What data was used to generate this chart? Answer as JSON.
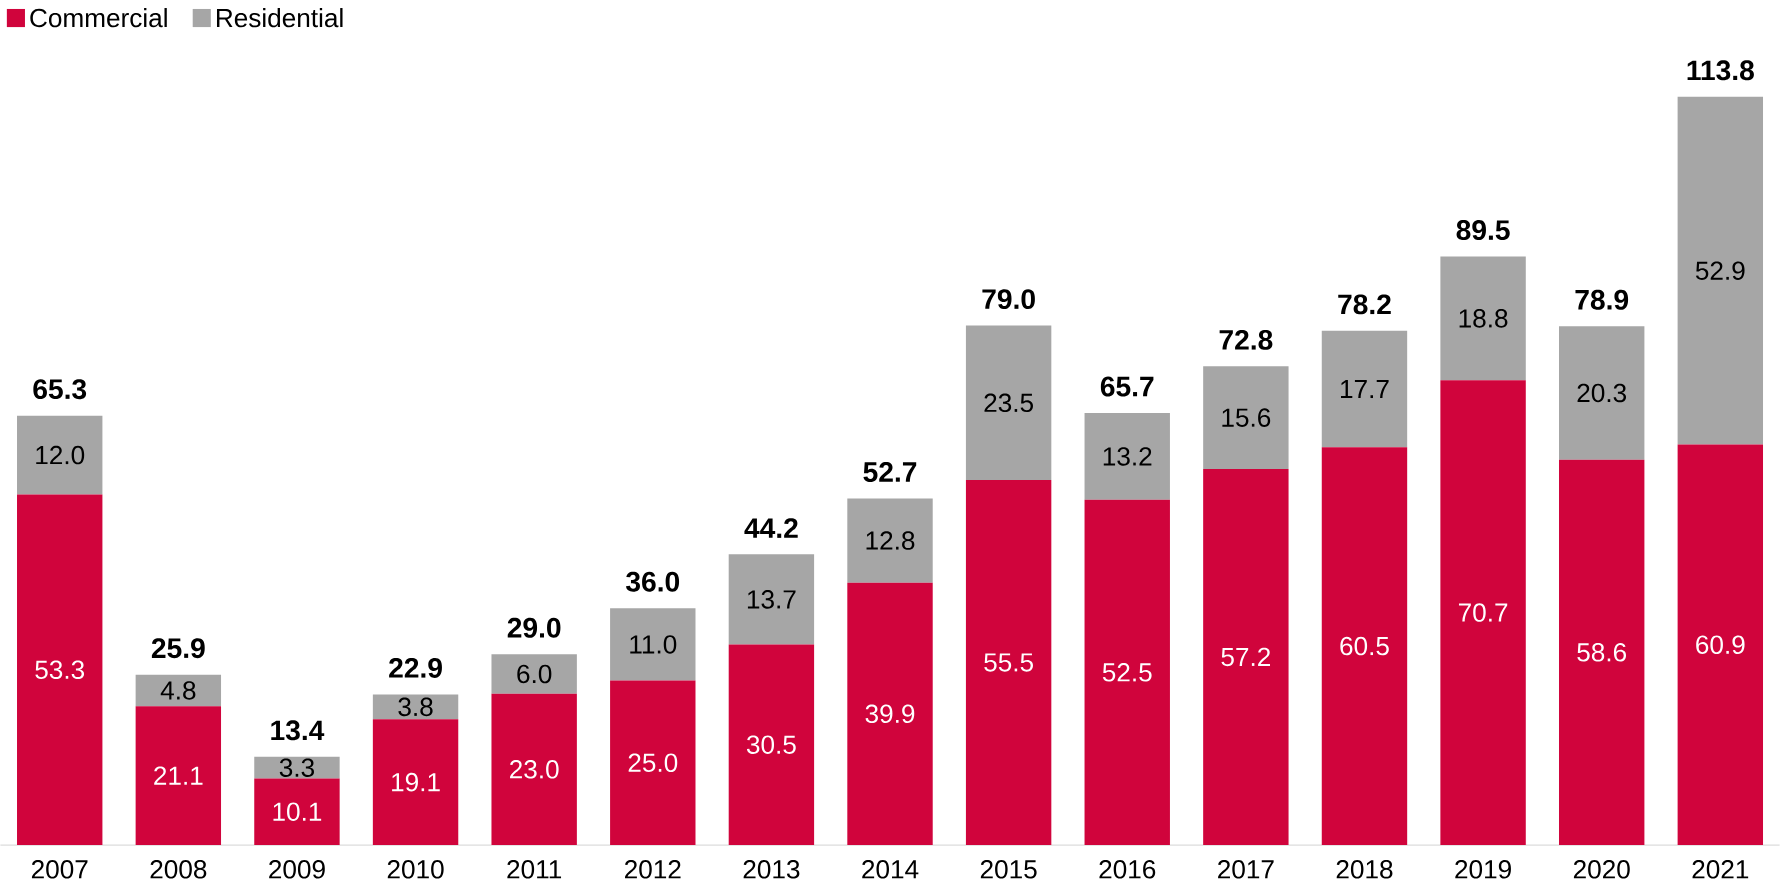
{
  "chart_data": {
    "type": "bar",
    "stacked": true,
    "legend": "top left",
    "categories": [
      "2007",
      "2008",
      "2009",
      "2010",
      "2011",
      "2012",
      "2013",
      "2014",
      "2015",
      "2016",
      "2017",
      "2018",
      "2019",
      "2020",
      "2021"
    ],
    "series": [
      {
        "name": "Commercial",
        "color": "#d0043c",
        "values": [
          53.3,
          21.1,
          10.1,
          19.1,
          23.0,
          25.0,
          30.5,
          39.9,
          55.5,
          52.5,
          57.2,
          60.5,
          70.7,
          58.6,
          60.9
        ],
        "value_labels": [
          "53.3",
          "21.1",
          "10.1",
          "19.1",
          "23.0",
          "25.0",
          "30.5",
          "39.9",
          "55.5",
          "52.5",
          "57.2",
          "60.5",
          "70.7",
          "58.6",
          "60.9"
        ]
      },
      {
        "name": "Residential",
        "color": "#a6a6a6",
        "values": [
          12.0,
          4.8,
          3.3,
          3.8,
          6.0,
          11.0,
          13.7,
          12.8,
          23.5,
          13.2,
          15.6,
          17.7,
          18.8,
          20.3,
          52.9
        ],
        "value_labels": [
          "12.0",
          "4.8",
          "3.3",
          "3.8",
          "6.0",
          "11.0",
          "13.7",
          "12.8",
          "23.5",
          "13.2",
          "15.6",
          "17.7",
          "18.8",
          "20.3",
          "52.9"
        ]
      }
    ],
    "totals": [
      "65.3",
      "25.9",
      "13.4",
      "22.9",
      "29.0",
      "36.0",
      "44.2",
      "52.7",
      "79.0",
      "65.7",
      "72.8",
      "78.2",
      "89.5",
      "78.9",
      "113.8"
    ]
  }
}
